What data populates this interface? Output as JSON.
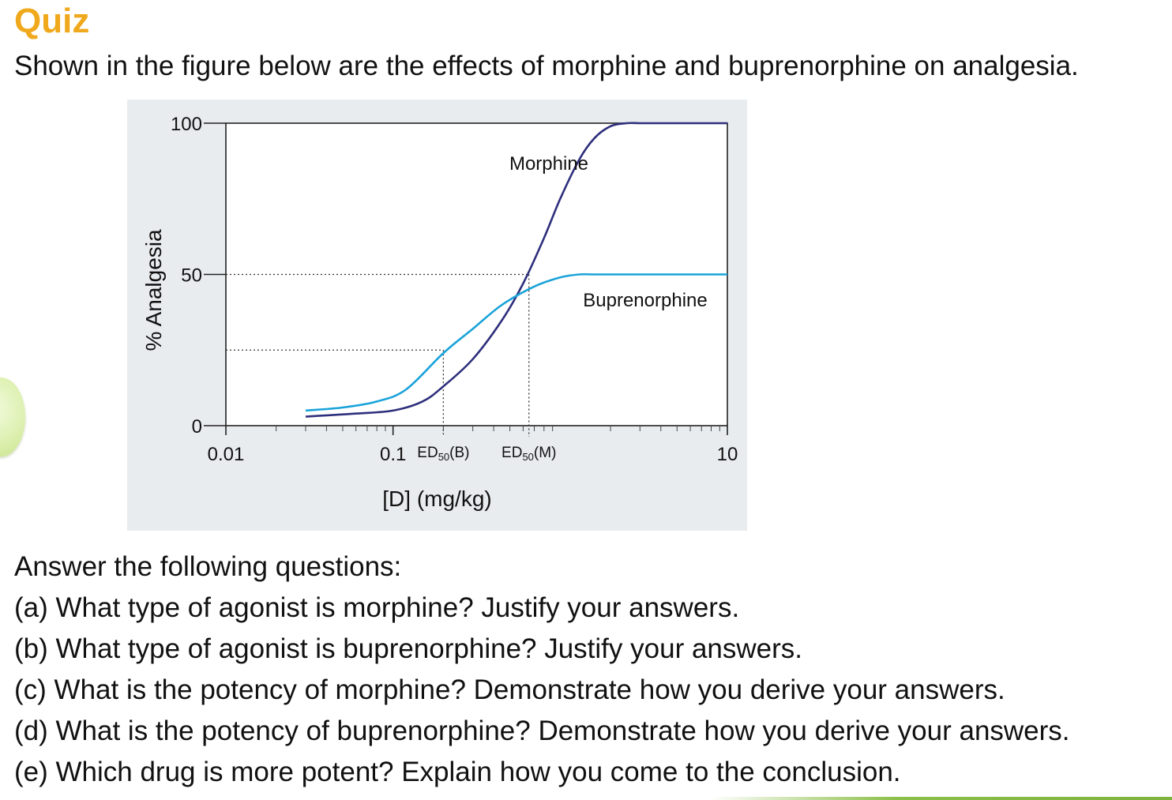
{
  "header": {
    "title": "Quiz",
    "intro": "Shown in the figure below are the effects of morphine and buprenorphine on analgesia."
  },
  "questions": {
    "lead": "Answer the following questions:",
    "items": [
      "(a) What type of agonist is morphine? Justify your answers.",
      "(b) What type of agonist is buprenorphine? Justify your answers.",
      "(c) What is the potency of morphine? Demonstrate how you derive your answers.",
      "(d) What is the potency of buprenorphine? Demonstrate how you derive your answers.",
      "(e) Which drug is more potent? Explain how you come to the conclusion."
    ]
  },
  "colors": {
    "title": "#f0a81c",
    "morphine": "#2e2f7c",
    "buprenorphine": "#1aa3d9",
    "panel": "#e9ecef"
  },
  "chart_data": {
    "type": "line",
    "xlabel": "[D] (mg/kg)",
    "ylabel": "% Analgesia",
    "xscale": "log",
    "xlim": [
      0.01,
      10
    ],
    "ylim": [
      0,
      100
    ],
    "xticks": [
      {
        "value": 0.01,
        "label": "0.01"
      },
      {
        "value": 0.1,
        "label": "0.1"
      },
      {
        "value": 10,
        "label": "10"
      }
    ],
    "yticks": [
      {
        "value": 0,
        "label": "0"
      },
      {
        "value": 50,
        "label": "50"
      },
      {
        "value": 100,
        "label": "100"
      }
    ],
    "grid": false,
    "series": [
      {
        "name": "Morphine",
        "color": "#2e2f7c",
        "x": [
          0.03,
          0.06,
          0.1,
          0.15,
          0.2,
          0.3,
          0.45,
          0.6,
          0.8,
          1.0,
          1.3,
          1.6,
          2.0,
          2.5,
          3.0,
          4.0,
          6.0,
          10.0
        ],
        "y": [
          3,
          4,
          5,
          8,
          13,
          22,
          35,
          47,
          62,
          75,
          88,
          95,
          99,
          100,
          100,
          100,
          100,
          100
        ]
      },
      {
        "name": "Buprenorphine",
        "color": "#1aa3d9",
        "x": [
          0.03,
          0.05,
          0.08,
          0.12,
          0.2,
          0.3,
          0.45,
          0.7,
          1.0,
          1.3,
          1.6,
          2.0,
          3.0,
          5.0,
          10.0
        ],
        "y": [
          5,
          6,
          8,
          12,
          24,
          32,
          40,
          46,
          49,
          50,
          50,
          50,
          50,
          50,
          50
        ]
      }
    ],
    "annotations": [
      {
        "text": "ED",
        "sub": "50",
        "suffix": "(B)",
        "x": 0.2,
        "y": 25
      },
      {
        "text": "ED",
        "sub": "50",
        "suffix": "(M)",
        "x": 0.65,
        "y": 50
      }
    ]
  }
}
